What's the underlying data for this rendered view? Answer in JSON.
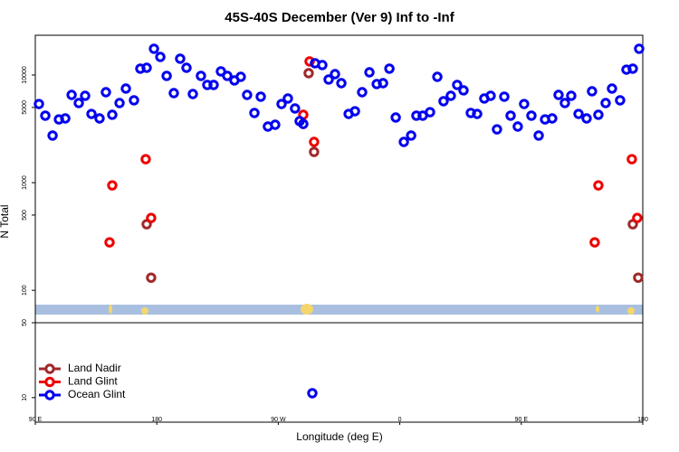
{
  "chart_data": [
    {
      "type": "scatter",
      "title": "45S-40S December (Ver 9)   Inf to -Inf",
      "y_label": "N Total",
      "y_scale": "log",
      "xlim": [
        90,
        540
      ],
      "ylim": [
        50,
        23400
      ],
      "yticks": [
        100,
        500,
        1000,
        5000,
        10000
      ],
      "series": [
        {
          "name": "Land Nadir",
          "color": "#a0282a",
          "x": [
            172.5,
            175.8,
            292.5,
            296.5,
            532.6,
            536.6
          ],
          "values": [
            411,
            131,
            10400,
            1930,
            411,
            131
          ]
        },
        {
          "name": "Land Glint",
          "color": "#ee0000",
          "x": [
            147.0,
            145.0,
            171.8,
            175.8,
            293.2,
            288.5,
            296.5,
            504.4,
            507.1,
            531.9,
            535.9
          ],
          "values": [
            944,
            279,
            1653,
            470,
            13370,
            4270,
            2390,
            279,
            944,
            1653,
            470
          ]
        },
        {
          "name": "Ocean Glint",
          "color": "#0000ee",
          "x": [
            92.7,
            97.4,
            102.8,
            107.5,
            112.2,
            116.9,
            122.2,
            126.9,
            131.6,
            137.6,
            142.3,
            147.0,
            152.4,
            157.1,
            163.1,
            167.8,
            172.5,
            177.9,
            182.6,
            187.3,
            192.6,
            197.3,
            202.0,
            206.7,
            212.7,
            217.4,
            222.1,
            227.5,
            232.2,
            237.5,
            242.2,
            246.9,
            252.3,
            257.0,
            262.3,
            267.7,
            272.4,
            277.1,
            282.4,
            285.8,
            288.5,
            297.2,
            302.6,
            307.3,
            312.0,
            316.7,
            322.1,
            326.8,
            332.1,
            337.5,
            342.9,
            347.6,
            352.3,
            357.0,
            363.0,
            368.4,
            372.3,
            377.0,
            382.4,
            387.8,
            392.4,
            397.8,
            402.5,
            407.2,
            412.6,
            417.3,
            422.6,
            427.3,
            432.0,
            437.4,
            442.1,
            447.4,
            452.1,
            457.5,
            462.9,
            467.6,
            472.9,
            477.6,
            482.3,
            487.0,
            492.4,
            498.4,
            502.4,
            507.1,
            512.5,
            517.2,
            523.2,
            527.9,
            532.6,
            537.3
          ],
          "values": [
            5380,
            4190,
            2740,
            3870,
            3950,
            6530,
            5490,
            6410,
            4350,
            3950,
            6920,
            4270,
            5490,
            7480,
            5820,
            11450,
            11670,
            17540,
            14720,
            9810,
            6790,
            14170,
            11670,
            6660,
            9810,
            8090,
            8090,
            10810,
            9810,
            8910,
            9620,
            6530,
            4440,
            6290,
            3320,
            3450,
            5380,
            6050,
            4890,
            3730,
            3510,
            12860,
            12370,
            9080,
            10190,
            8400,
            4350,
            4610,
            6920,
            10590,
            8240,
            8400,
            11450,
            4030,
            2390,
            2740,
            4190,
            4190,
            4520,
            9620,
            5710,
            6410,
            8090,
            7200,
            4440,
            4350,
            6050,
            6410,
            3130,
            6290,
            4190,
            3320,
            5380,
            4190,
            2740,
            3870,
            3950,
            6530,
            5490,
            6410,
            4350,
            3950,
            7060,
            4270,
            5490,
            7480,
            5820,
            11220,
            11450,
            17540
          ]
        }
      ]
    },
    {
      "type": "scatter",
      "x_label": "Longitude (deg E)",
      "y_scale": "log",
      "legend": "lower left",
      "xlim": [
        90,
        540
      ],
      "xticks": [
        {
          "value": 90,
          "label": "90 E"
        },
        {
          "value": 180,
          "label": "180"
        },
        {
          "value": 270,
          "label": "90 W"
        },
        {
          "value": 360,
          "label": "0"
        },
        {
          "value": 450,
          "label": "90 E"
        },
        {
          "value": 540,
          "label": "180"
        }
      ],
      "ylim": [
        5.9,
        50
      ],
      "yticks": [
        10,
        50
      ],
      "series": [
        {
          "name": "Land Nadir",
          "color": "#a0282a",
          "x": [],
          "values": []
        },
        {
          "name": "Land Glint",
          "color": "#ee0000",
          "x": [],
          "values": []
        },
        {
          "name": "Ocean Glint",
          "color": "#0000ee",
          "x": [
            295.2
          ],
          "values": [
            11
          ]
        }
      ]
    }
  ]
}
